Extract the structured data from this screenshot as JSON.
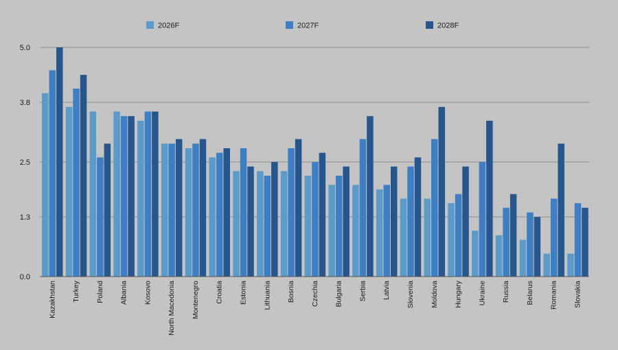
{
  "chart_data": {
    "type": "bar",
    "title": "",
    "xlabel": "",
    "ylabel": "",
    "ylim": [
      0,
      5.0
    ],
    "yticks": [
      "0.0",
      "1.3",
      "2.5",
      "3.8",
      "5.0"
    ],
    "grid": true,
    "legend_position": "top",
    "colors": [
      "#5b9bc9",
      "#3d7ec4",
      "#26568c"
    ],
    "categories": [
      "Kazakhstan",
      "Turkey",
      "Poland",
      "Albania",
      "Kosovo",
      "North Macedonia",
      "Montenegro",
      "Croatia",
      "Estonia",
      "Lithuania",
      "Bosnia",
      "Czechia",
      "Bulgaria",
      "Serbia",
      "Latvia",
      "Slovenia",
      "Moldova",
      "Hungary",
      "Ukraine",
      "Russia",
      "Belarus",
      "Romania",
      "Slovakia"
    ],
    "series": [
      {
        "name": "2026F",
        "values": [
          4.0,
          3.7,
          3.6,
          3.6,
          3.4,
          2.9,
          2.8,
          2.6,
          2.3,
          2.3,
          2.3,
          2.2,
          2.0,
          2.0,
          1.9,
          1.7,
          1.7,
          1.6,
          1.0,
          0.9,
          0.8,
          0.5,
          0.5
        ]
      },
      {
        "name": "2027F",
        "values": [
          4.5,
          4.1,
          2.6,
          3.5,
          3.6,
          2.9,
          2.9,
          2.7,
          2.8,
          2.2,
          2.8,
          2.5,
          2.2,
          3.0,
          2.0,
          2.4,
          3.0,
          1.8,
          2.5,
          1.5,
          1.4,
          1.7,
          1.6
        ]
      },
      {
        "name": "2028F",
        "values": [
          5.0,
          4.4,
          2.9,
          3.5,
          3.6,
          3.0,
          3.0,
          2.8,
          2.4,
          2.5,
          3.0,
          2.7,
          2.4,
          3.5,
          2.4,
          2.6,
          3.7,
          2.4,
          3.4,
          1.8,
          1.3,
          2.9,
          1.5
        ]
      }
    ]
  }
}
